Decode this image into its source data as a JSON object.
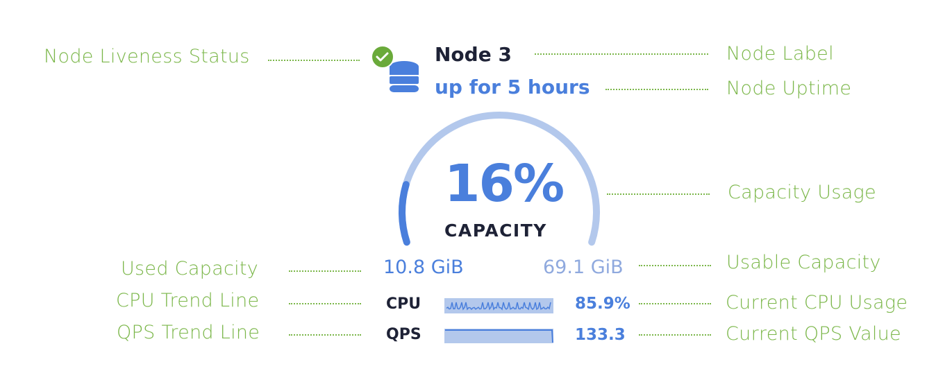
{
  "node": {
    "label": "Node 3",
    "uptime": "up for 5 hours",
    "liveness_icon": "check-circle-icon",
    "node_icon": "database-icon",
    "capacity_percent": 16,
    "capacity_text": "16%",
    "capacity_label": "CAPACITY",
    "used_capacity": "10.8 GiB",
    "usable_capacity": "69.1 GiB",
    "cpu_label": "CPU",
    "cpu_value": "85.9%",
    "qps_label": "QPS",
    "qps_value": "133.3"
  },
  "annotations": {
    "liveness": "Node Liveness Status",
    "label": "Node Label",
    "uptime": "Node Uptime",
    "capacity_usage": "Capacity Usage",
    "used_capacity": "Used Capacity",
    "usable_capacity": "Usable Capacity",
    "cpu_trend": "CPU Trend Line",
    "cpu_current": "Current CPU Usage",
    "qps_trend": "QPS Trend Line",
    "qps_current": "Current QPS Value"
  },
  "colors": {
    "annotation": "#7ab648",
    "accent": "#4a7fdc",
    "track": "#b3c8ec",
    "status_ok": "#6aaa3a",
    "text_dark": "#1e2236"
  }
}
